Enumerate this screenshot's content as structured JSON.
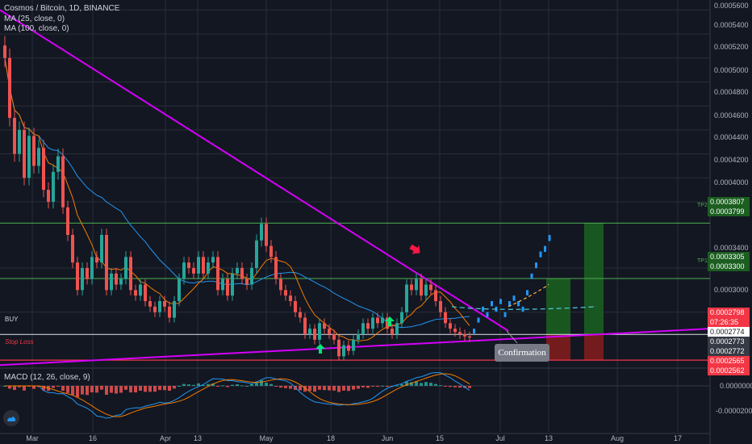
{
  "header": {
    "symbol_line": "Cosmos / Bitcoin, 1D, BINANCE",
    "ma25_label": "MA (25, close, 0)",
    "ma100_label": "MA (100, close, 0)",
    "macd_label": "MACD (12, 26, close, 9)"
  },
  "colors": {
    "background": "#131722",
    "grid": "#2a2e39",
    "candle_up": "#26a69a",
    "candle_down": "#ef5350",
    "ma25": "#f57c00",
    "ma100": "#2196f3",
    "trendline": "#d500f9",
    "level_green": "#4caf50",
    "level_red": "#f23645",
    "projection": "#2196f3"
  },
  "annotations": {
    "buy_label": "BUY",
    "stop_loss_label": "Stop Loss",
    "tp1_label": "TP1",
    "tp2_label": "TP2",
    "confirmation_label": "Confirmation"
  },
  "price_tags": {
    "tp2_a": "0.0003807",
    "tp2_b": "0.0003799",
    "tp1_a": "0.0003305",
    "tp1_b": "0.0003300",
    "buy": "0.0002798",
    "countdown": "07:26:35",
    "last": "0.0002774",
    "sl_a": "0.0002773",
    "sl_b": "0.0002772",
    "sl_c": "0.0002565",
    "sl_d": "0.0002562"
  },
  "chart_data": {
    "type": "candlestick",
    "y_axis": {
      "range": [
        0.00025,
        0.000565
      ],
      "ticks": [
        "0.0005600",
        "0.0005400",
        "0.0005200",
        "0.0005000",
        "0.0004800",
        "0.0004600",
        "0.0004400",
        "0.0004200",
        "0.0004000",
        "0.0003400",
        "0.0003000"
      ]
    },
    "macd_axis": {
      "ticks": [
        "0.0000000",
        "-0.0000200"
      ]
    },
    "x_axis": {
      "ticks": [
        "Mar",
        "16",
        "Apr",
        "13",
        "May",
        "18",
        "Jun",
        "15",
        "Jul",
        "13",
        "Aug",
        "17"
      ]
    },
    "levels": {
      "tp2": 0.0003807,
      "tp1": 0.0003305,
      "buy": 0.0002798,
      "stop_loss": 0.0002565
    },
    "close": [
      0.00052,
      0.00047,
      0.00044,
      0.00046,
      0.00042,
      0.000455,
      0.00043,
      0.000445,
      0.00041,
      0.0004,
      0.000425,
      0.000438,
      0.000395,
      0.00037,
      0.000345,
      0.00032,
      0.00034,
      0.00033,
      0.00035,
      0.000345,
      0.00037,
      0.00032,
      0.000335,
      0.000325,
      0.00033,
      0.00035,
      0.00032,
      0.000315,
      0.000325,
      0.00031,
      0.000305,
      0.0003,
      0.00031,
      0.000305,
      0.000295,
      0.00031,
      0.00033,
      0.000345,
      0.00034,
      0.000335,
      0.00035,
      0.000335,
      0.000345,
      0.00035,
      0.00032,
      0.00033,
      0.000315,
      0.000335,
      0.00034,
      0.00033,
      0.000325,
      0.00034,
      0.000365,
      0.00038,
      0.00036,
      0.00035,
      0.00033,
      0.00032,
      0.000315,
      0.00031,
      0.0003,
      0.000295,
      0.00028,
      0.000285,
      0.000275,
      0.00029,
      0.000285,
      0.00028,
      0.000275,
      0.00026,
      0.00027,
      0.000265,
      0.000275,
      0.00028,
      0.00029,
      0.000285,
      0.000295,
      0.00029,
      0.000295,
      0.000285,
      0.00028,
      0.00029,
      0.0003,
      0.000325,
      0.00032,
      0.00033,
      0.000315,
      0.000325,
      0.00032,
      0.00031,
      0.0003,
      0.00029,
      0.000285,
      0.000282,
      0.00028,
      0.000278,
      0.000277
    ],
    "projection": [
      0.000285,
      0.000295,
      0.000305,
      0.0003,
      0.00031,
      0.000305,
      0.000312,
      0.0003,
      0.00031,
      0.000315,
      0.00031,
      0.000305,
      0.00032,
      0.000335,
      0.000345,
      0.000355,
      0.00036,
      0.00037
    ]
  }
}
